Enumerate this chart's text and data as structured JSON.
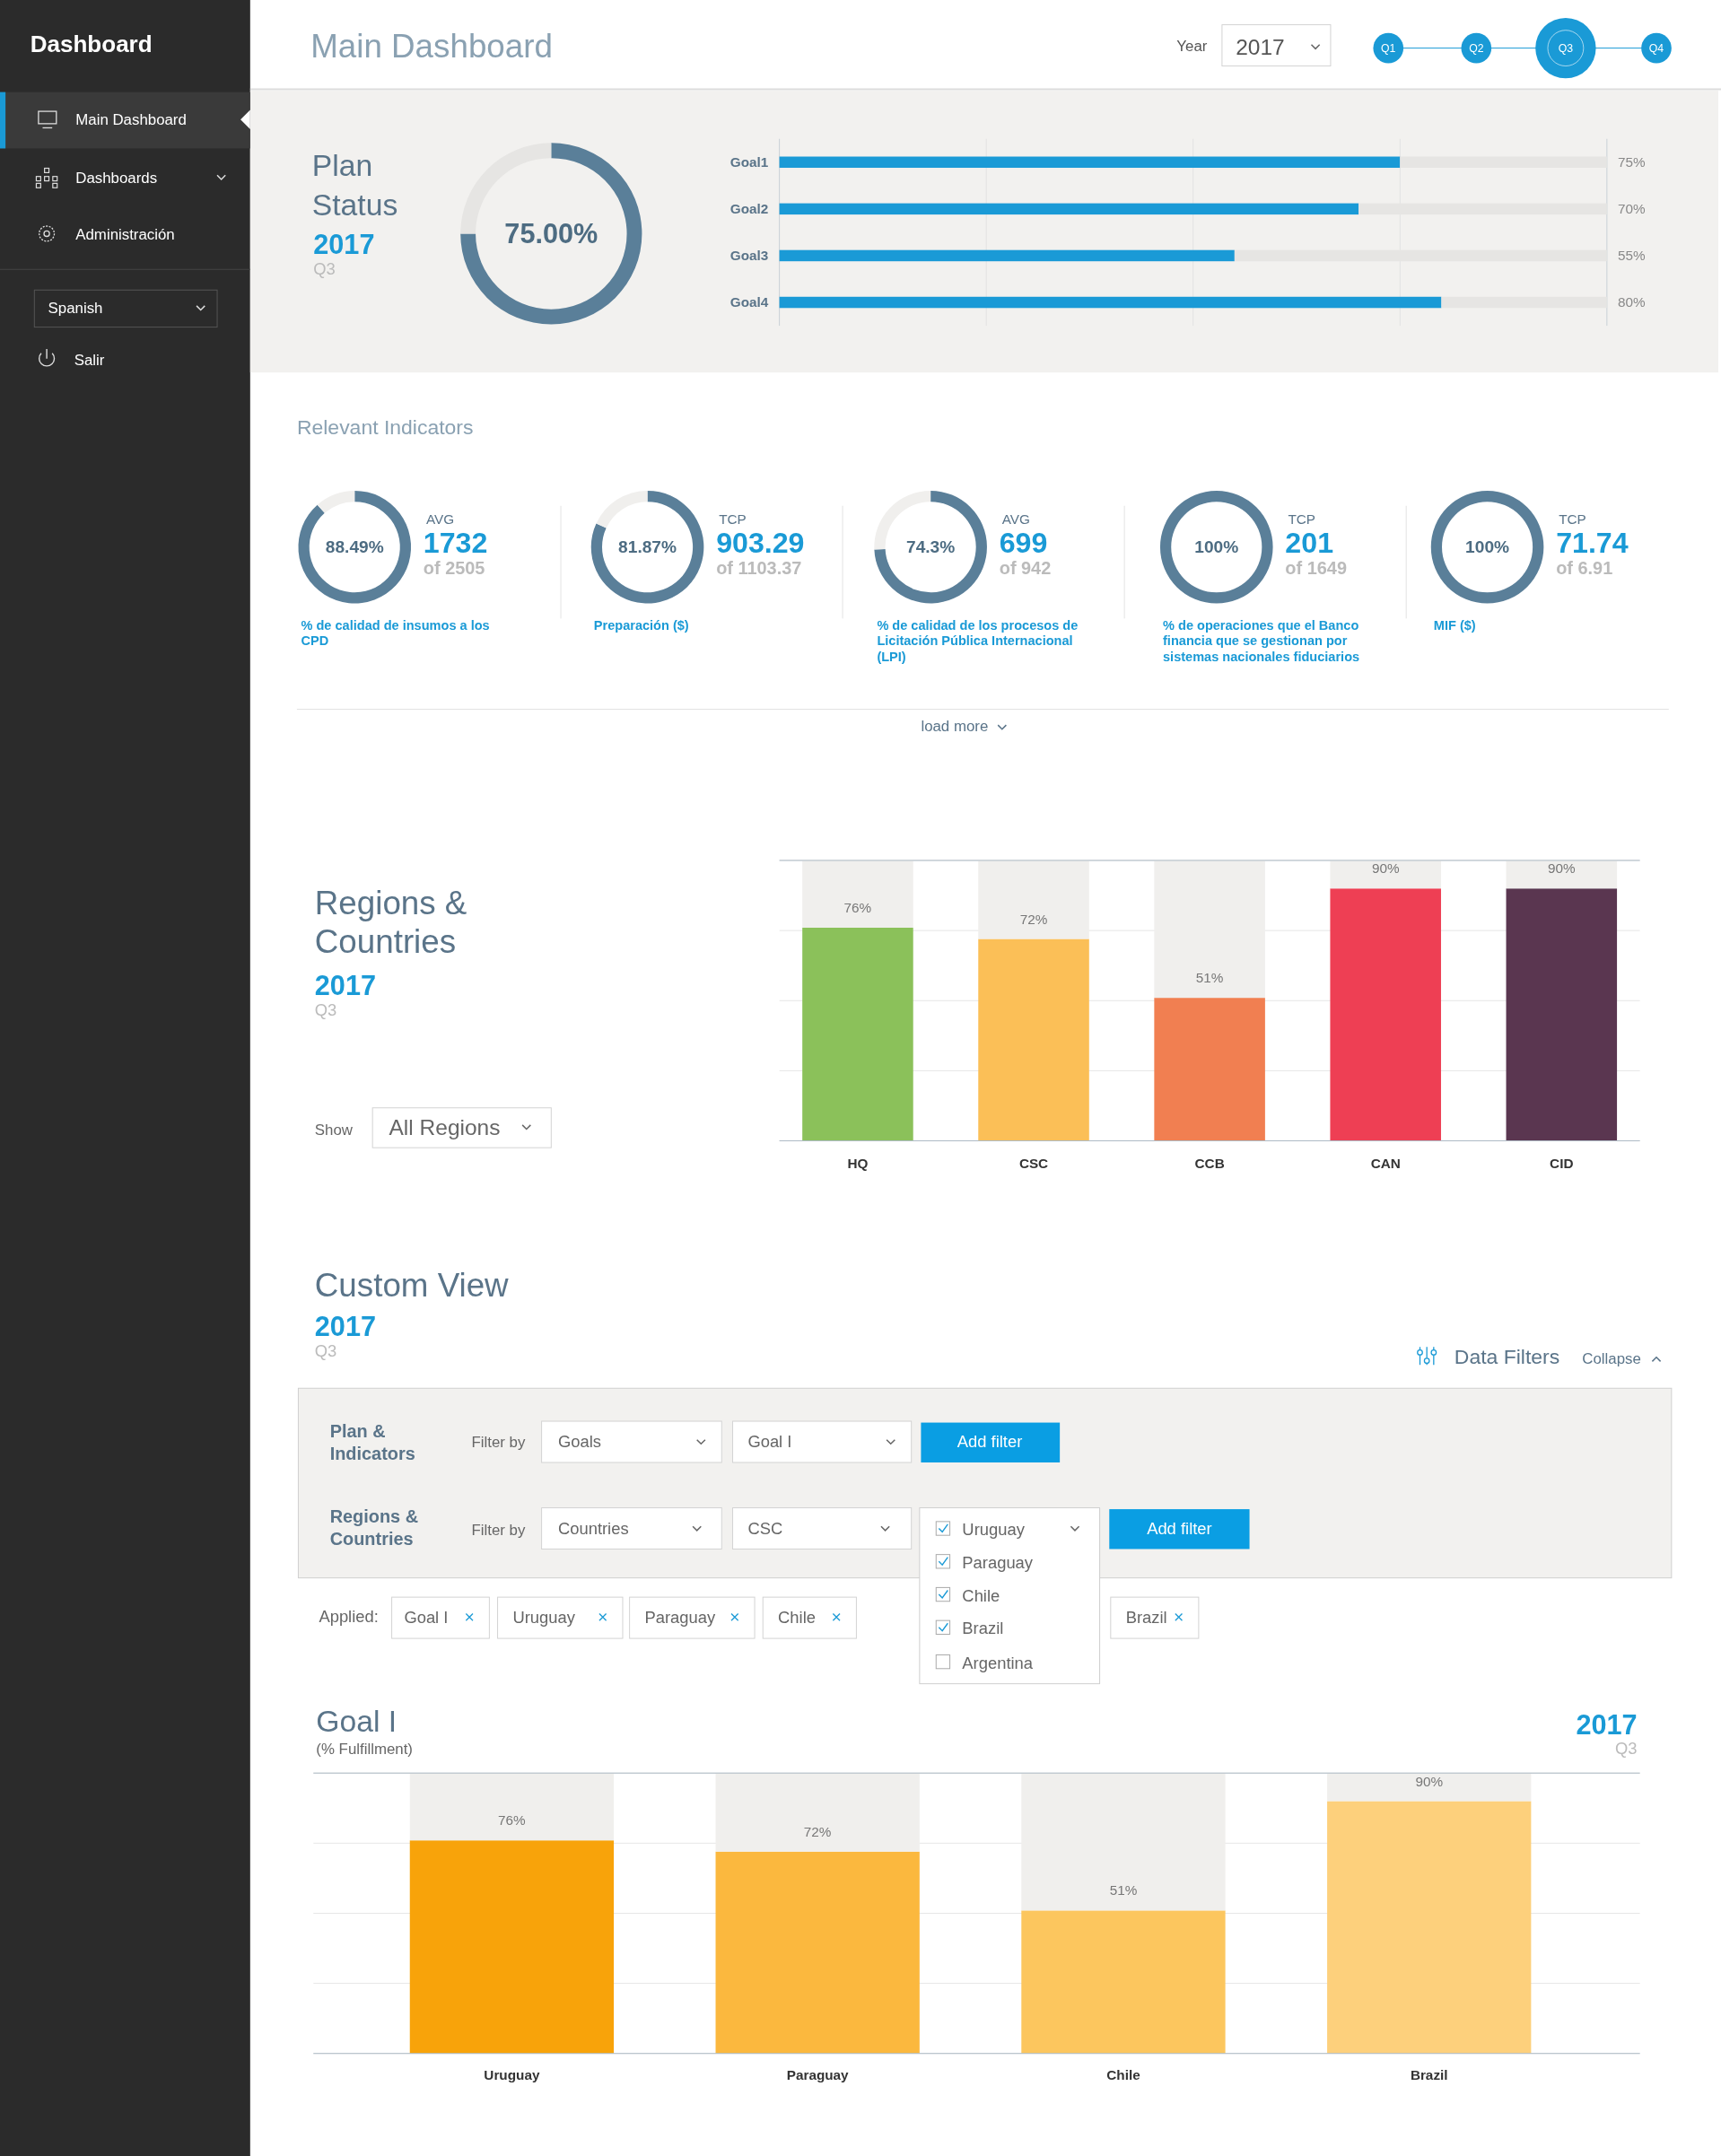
{
  "chart_data": [
    {
      "type": "other",
      "title": "Main Dashboard",
      "annotations": [
        "Dashboard",
        "Main Dashboard",
        "Dashboards",
        "Administración",
        "Spanish",
        "Salir",
        "Year",
        "2017",
        "Q1",
        "Q2",
        "Q3",
        "Q4"
      ]
    },
    {
      "type": "donut",
      "title": "Plan Status",
      "subtitle": "2017",
      "annotations": [
        "Q3"
      ],
      "categories": [
        null,
        null
      ],
      "values": [
        75,
        25
      ],
      "colors": [
        "#5a7f99",
        "#e6e5e3"
      ],
      "value_labels": [
        "75.00%",
        null
      ]
    },
    {
      "type": "bar",
      "orientation": "horizontal",
      "stacked": true,
      "categories": [
        "Goal1",
        "Goal2",
        "Goal3",
        "Goal4"
      ],
      "series": [
        {
          "color": "#1a9ad6",
          "values": [
            75,
            70,
            55,
            80
          ],
          "value_labels": [
            "75%",
            "70%",
            "55%",
            "80%"
          ]
        },
        {
          "color": "#e6e5e3",
          "values": [
            25,
            30,
            45,
            20
          ]
        }
      ],
      "xlim": [
        0,
        100
      ],
      "xticks": [
        {
          "value": 0,
          "label": null
        },
        {
          "value": 25,
          "label": null
        },
        {
          "value": 50,
          "label": null
        },
        {
          "value": 75,
          "label": null
        },
        {
          "value": 100,
          "label": null
        }
      ],
      "grid": "x",
      "tick_labels": "y"
    },
    {
      "type": "other",
      "title": "Relevant Indicators",
      "annotations": [
        "load more"
      ]
    },
    {
      "type": "donut",
      "title": "% de calidad de insumos a los CPD",
      "annotations": [
        "AVG",
        "1732",
        "of 2505"
      ],
      "categories": [
        null,
        null
      ],
      "values": [
        88.49,
        11.51
      ],
      "colors": [
        "#5a7f99",
        "#f0efed"
      ],
      "value_labels": [
        "88.49%",
        null
      ]
    },
    {
      "type": "donut",
      "title": "Preparación ($)",
      "annotations": [
        "TCP",
        "903.29",
        "of 1103.37"
      ],
      "categories": [
        null,
        null
      ],
      "values": [
        81.87,
        18.13
      ],
      "colors": [
        "#5a7f99",
        "#f0efed"
      ],
      "value_labels": [
        "81.87%",
        null
      ]
    },
    {
      "type": "donut",
      "title": "% de calidad de los procesos de Licitación Pública Internacional (LPI)",
      "annotations": [
        "AVG",
        "699",
        "of 942"
      ],
      "categories": [
        null,
        null
      ],
      "values": [
        74.3,
        25.7
      ],
      "colors": [
        "#5a7f99",
        "#f0efed"
      ],
      "value_labels": [
        "74.3%",
        null
      ]
    },
    {
      "type": "donut",
      "title": "% de operaciones que el Banco financia que se gestionan por sistemas nacionales fiduciarios",
      "annotations": [
        "TCP",
        "201",
        "of 1649"
      ],
      "categories": [
        null,
        null
      ],
      "values": [
        100,
        0
      ],
      "colors": [
        "#5a7f99",
        "#f0efed"
      ],
      "value_labels": [
        "100%",
        null
      ]
    },
    {
      "type": "donut",
      "title": "MIF ($)",
      "annotations": [
        "TCP",
        "71.74",
        "of 6.91"
      ],
      "categories": [
        null,
        null
      ],
      "values": [
        100,
        0
      ],
      "colors": [
        "#5a7f99",
        "#f0efed"
      ],
      "value_labels": [
        "100%",
        null
      ]
    },
    {
      "type": "other",
      "title": "Regions & Countries",
      "subtitle": "2017",
      "annotations": [
        "Q3",
        "Show",
        "All Regions"
      ]
    },
    {
      "type": "bar",
      "stacked": true,
      "categories": [
        "HQ",
        "CSC",
        "CCB",
        "CAN",
        "CID"
      ],
      "series": [
        {
          "colors": [
            "#8bc15a",
            "#fbbf57",
            "#f17f51",
            "#ee3f54",
            "#5a3650"
          ],
          "values": [
            76,
            72,
            51,
            90,
            90
          ],
          "value_labels": [
            "76%",
            "72%",
            "51%",
            "90%",
            "90%"
          ]
        },
        {
          "color": "#f0efed",
          "values": [
            24,
            28,
            49,
            10,
            10
          ]
        }
      ],
      "ylim": [
        0,
        100
      ],
      "yticks": [
        {
          "value": 0,
          "label": null
        },
        {
          "value": 25,
          "label": null
        },
        {
          "value": 50,
          "label": null
        },
        {
          "value": 75,
          "label": null
        },
        {
          "value": 100,
          "label": null
        }
      ],
      "grid": "y",
      "tick_labels": "x"
    },
    {
      "type": "other",
      "title": "Custom View",
      "subtitle": "2017",
      "annotations": [
        "Q3",
        "Data Filters",
        "Collapse",
        "Plan & Indicators",
        "Filter by",
        "Goals",
        "Goal I",
        "Add filter",
        "Regions & Countries",
        "Filter by",
        "Countries",
        "CSC",
        "Uruguay",
        "Paraguay",
        "Chile",
        "Brazil",
        "Argentina",
        "Add filter",
        "Applied:",
        "Goal I",
        "Uruguay",
        "Paraguay",
        "Chile",
        "Brazil"
      ]
    },
    {
      "type": "bar",
      "title": "Goal I",
      "subtitle": "(% Fulfillment)",
      "annotations": [
        "2017",
        "Q3"
      ],
      "stacked": true,
      "categories": [
        "Uruguay",
        "Paraguay",
        "Chile",
        "Brazil"
      ],
      "series": [
        {
          "colors": [
            "#f8a30a",
            "#fbb83e",
            "#fcc65e",
            "#fdd07c"
          ],
          "values": [
            76,
            72,
            51,
            90
          ],
          "value_labels": [
            "76%",
            "72%",
            "51%",
            "90%"
          ]
        },
        {
          "color": "#f0efed",
          "values": [
            24,
            28,
            49,
            10
          ]
        }
      ],
      "ylim": [
        0,
        100
      ],
      "yticks": [
        {
          "value": 0,
          "label": null
        },
        {
          "value": 25,
          "label": null
        },
        {
          "value": 50,
          "label": null
        },
        {
          "value": 75,
          "label": null
        },
        {
          "value": 100,
          "label": null
        }
      ],
      "grid": "y",
      "tick_labels": "x"
    }
  ]
}
